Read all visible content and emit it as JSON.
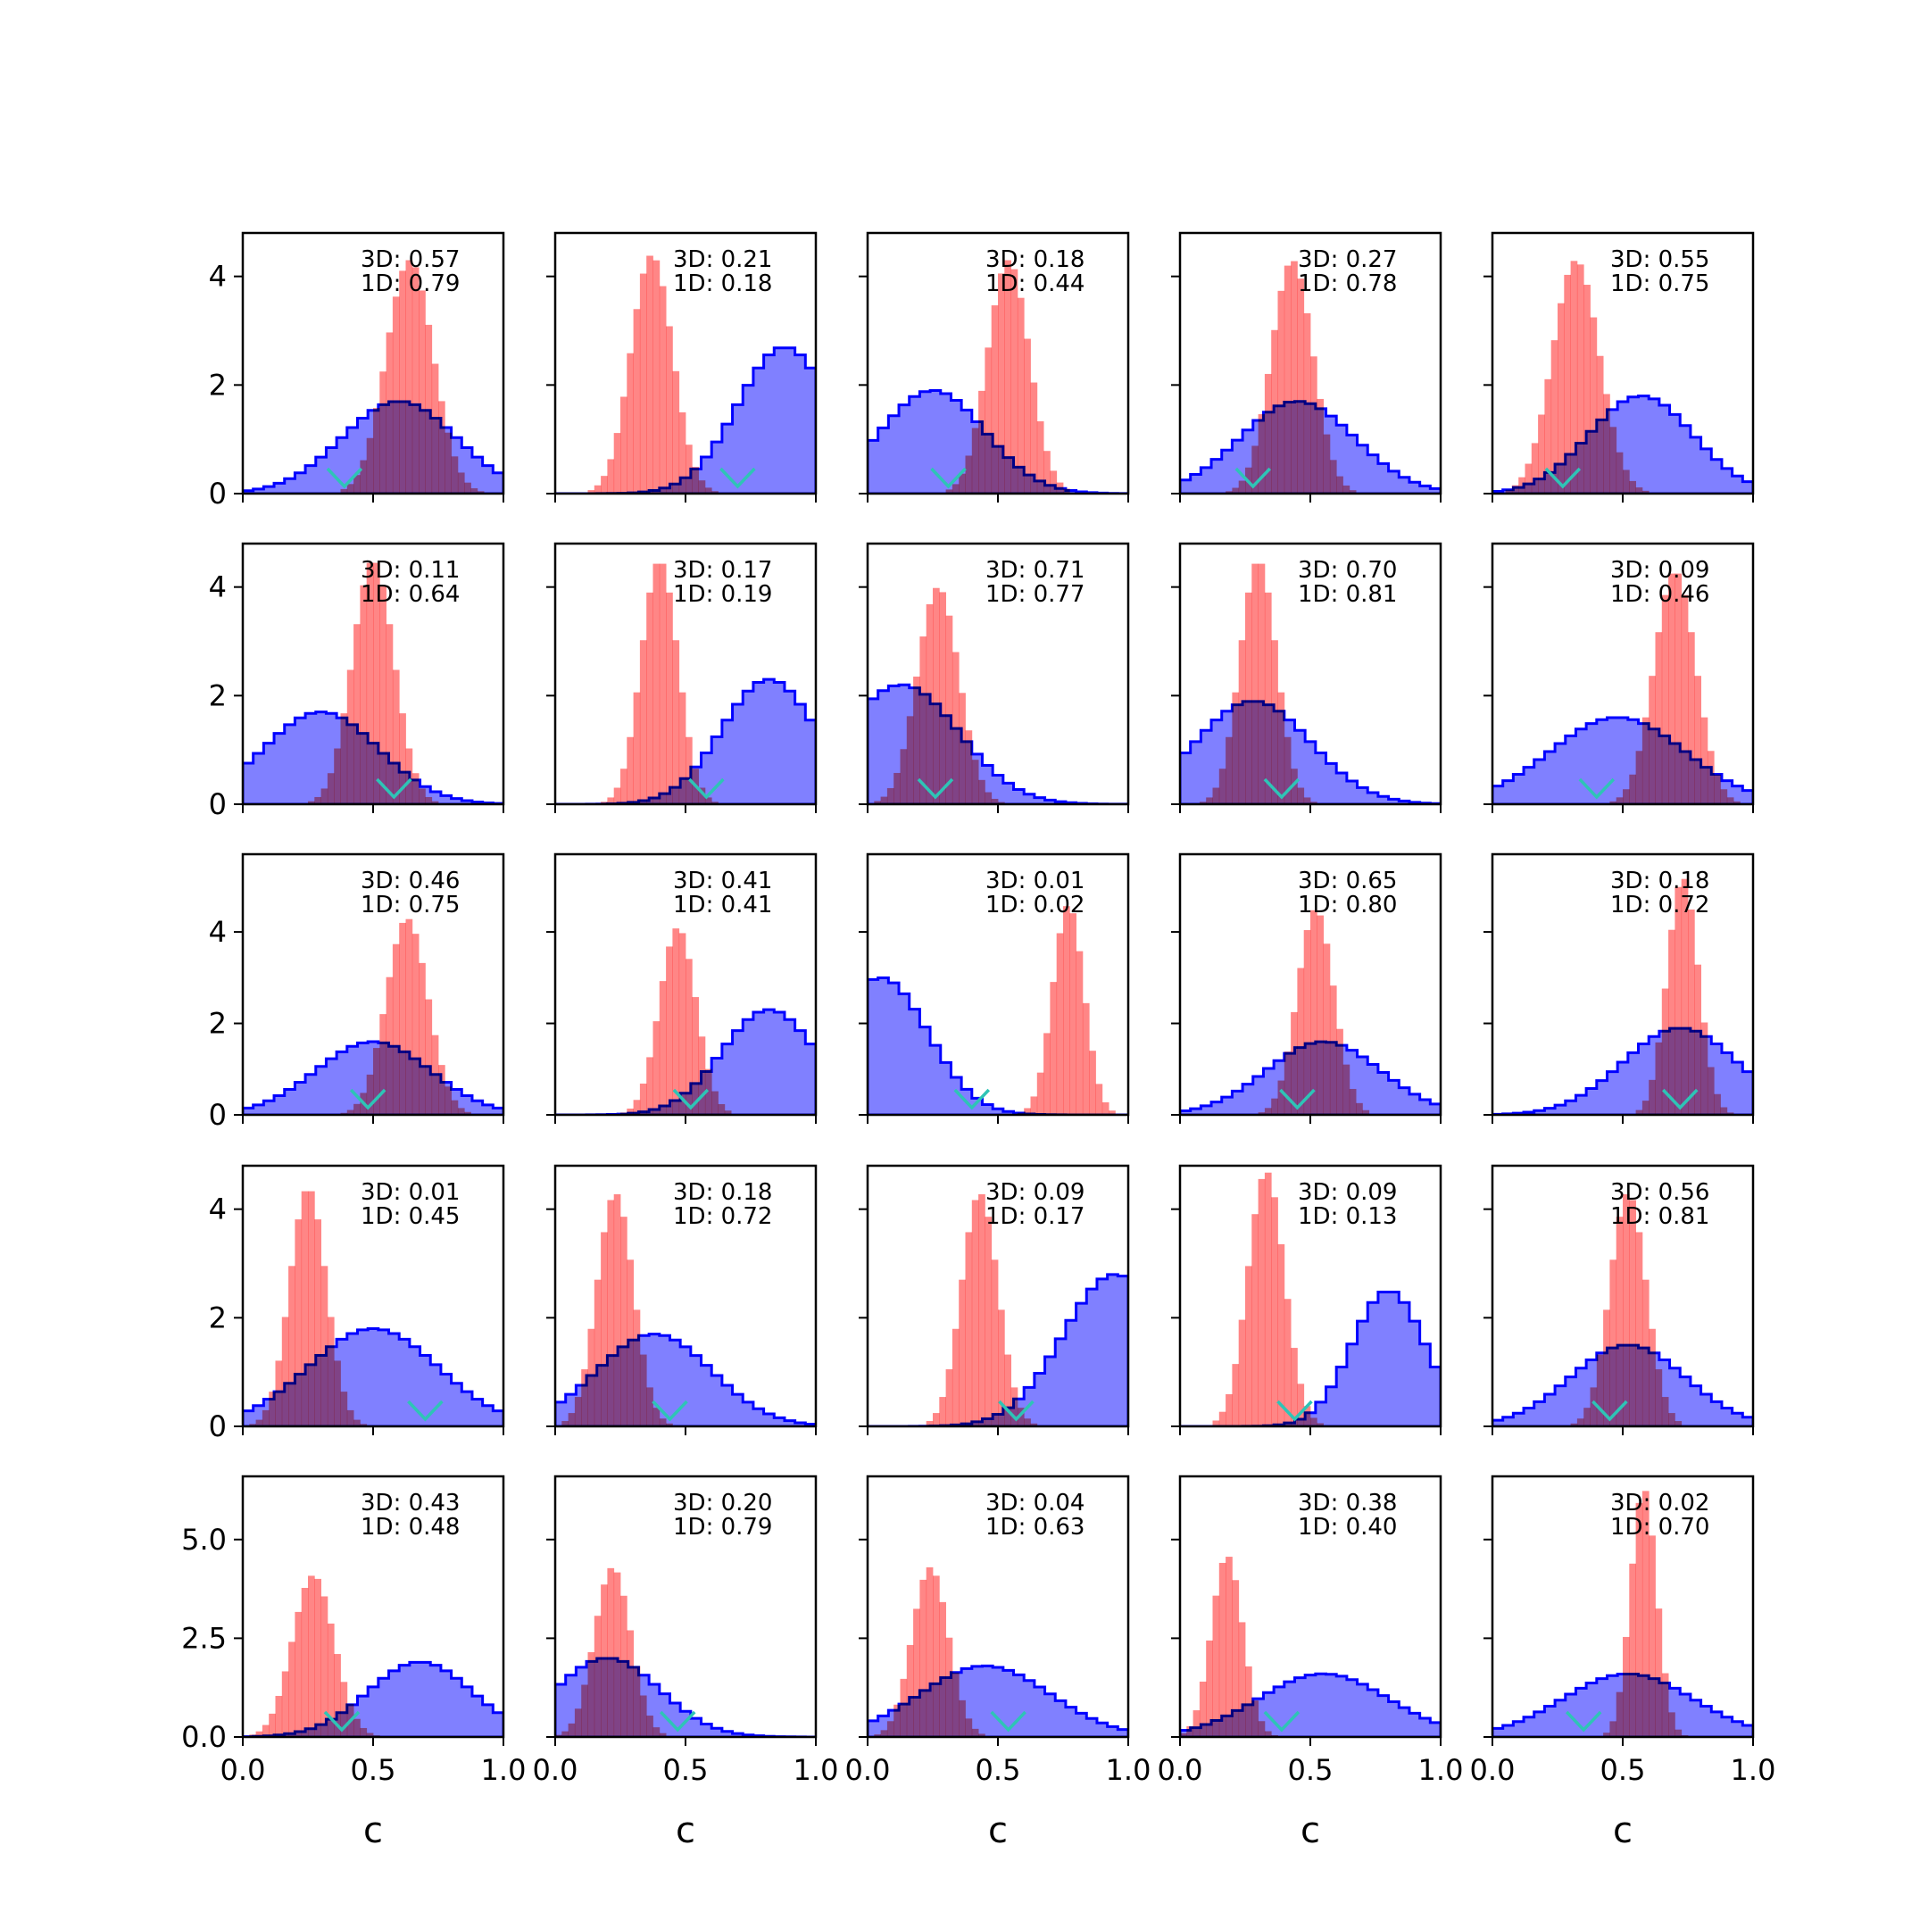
{
  "colors": {
    "blue_fill": "#8080ff",
    "blue_edge": "#0000ff",
    "red_fill": "#ff8080",
    "marker": "#2ec4b6",
    "axes": "#000000"
  },
  "chart_data": {
    "type": "grid",
    "layout": {
      "rows": 5,
      "cols": 5,
      "sharex": true,
      "sharey": "row"
    },
    "xlabel": "c",
    "xlim": [
      0,
      1
    ],
    "xticks": [
      0.0,
      0.5,
      1.0
    ],
    "xtick_labels": [
      "0.0",
      "0.5",
      "1.0"
    ],
    "row_ylims": [
      [
        0,
        4.8
      ],
      [
        0,
        4.8
      ],
      [
        0,
        5.7
      ],
      [
        0,
        4.8
      ],
      [
        0,
        6.6
      ]
    ],
    "row_yticks": [
      [
        0,
        2,
        4
      ],
      [
        0,
        2,
        4
      ],
      [
        0,
        2,
        4
      ],
      [
        0,
        2,
        4
      ],
      [
        0.0,
        2.5,
        5.0
      ]
    ],
    "row_ytick_labels": [
      [
        "0",
        "2",
        "4"
      ],
      [
        "0",
        "2",
        "4"
      ],
      [
        "0",
        "2",
        "4"
      ],
      [
        "0",
        "2",
        "4"
      ],
      [
        "0.0",
        "2.5",
        "5.0"
      ]
    ],
    "series_styles": {
      "blue": "step histogram, filled blue (alpha 0.5) with solid blue outline",
      "red": "bar histogram, filled red (alpha 0.5)",
      "marker": "cyan 'v' marker at true c value"
    },
    "panels": [
      {
        "row": 0,
        "col": 0,
        "ann": [
          "3D: 0.57",
          "1D: 0.79"
        ],
        "blue": {
          "mean": 0.6,
          "sd": 0.22,
          "peak": 1.7
        },
        "red": {
          "mean": 0.64,
          "sd": 0.09,
          "peak": 4.3
        },
        "marker": 0.39
      },
      {
        "row": 0,
        "col": 1,
        "ann": [
          "3D: 0.21",
          "1D: 0.18"
        ],
        "blue": {
          "mean": 0.88,
          "sd": 0.18,
          "peak": 2.7
        },
        "red": {
          "mean": 0.37,
          "sd": 0.08,
          "peak": 4.4
        },
        "marker": 0.7
      },
      {
        "row": 0,
        "col": 2,
        "ann": [
          "3D: 0.18",
          "1D: 0.44"
        ],
        "blue": {
          "mean": 0.25,
          "sd": 0.2,
          "peak": 1.9
        },
        "red": {
          "mean": 0.54,
          "sd": 0.08,
          "peak": 4.3
        },
        "marker": 0.31
      },
      {
        "row": 0,
        "col": 3,
        "ann": [
          "3D: 0.27",
          "1D: 0.78"
        ],
        "blue": {
          "mean": 0.45,
          "sd": 0.22,
          "peak": 1.7
        },
        "red": {
          "mean": 0.43,
          "sd": 0.08,
          "peak": 4.3
        },
        "marker": 0.28
      },
      {
        "row": 0,
        "col": 4,
        "ann": [
          "3D: 0.55",
          "1D: 0.75"
        ],
        "blue": {
          "mean": 0.57,
          "sd": 0.2,
          "peak": 1.8
        },
        "red": {
          "mean": 0.32,
          "sd": 0.09,
          "peak": 4.3
        },
        "marker": 0.27
      },
      {
        "row": 1,
        "col": 0,
        "ann": [
          "3D: 0.11",
          "1D: 0.64"
        ],
        "blue": {
          "mean": 0.3,
          "sd": 0.22,
          "peak": 1.7
        },
        "red": {
          "mean": 0.5,
          "sd": 0.08,
          "peak": 4.5
        },
        "marker": 0.58
      },
      {
        "row": 1,
        "col": 1,
        "ann": [
          "3D: 0.17",
          "1D: 0.19"
        ],
        "blue": {
          "mean": 0.82,
          "sd": 0.18,
          "peak": 2.3
        },
        "red": {
          "mean": 0.4,
          "sd": 0.07,
          "peak": 4.5
        },
        "marker": 0.58
      },
      {
        "row": 1,
        "col": 2,
        "ann": [
          "3D: 0.71",
          "1D: 0.77"
        ],
        "blue": {
          "mean": 0.13,
          "sd": 0.22,
          "peak": 2.2
        },
        "red": {
          "mean": 0.27,
          "sd": 0.08,
          "peak": 4.0
        },
        "marker": 0.26
      },
      {
        "row": 1,
        "col": 3,
        "ann": [
          "3D: 0.70",
          "1D: 0.81"
        ],
        "blue": {
          "mean": 0.28,
          "sd": 0.22,
          "peak": 1.9
        },
        "red": {
          "mean": 0.3,
          "sd": 0.07,
          "peak": 4.5
        },
        "marker": 0.39
      },
      {
        "row": 1,
        "col": 4,
        "ann": [
          "3D: 0.09",
          "1D: 0.46"
        ],
        "blue": {
          "mean": 0.48,
          "sd": 0.26,
          "peak": 1.6
        },
        "red": {
          "mean": 0.7,
          "sd": 0.08,
          "peak": 4.3
        },
        "marker": 0.4
      },
      {
        "row": 2,
        "col": 0,
        "ann": [
          "3D: 0.46",
          "1D: 0.75"
        ],
        "blue": {
          "mean": 0.5,
          "sd": 0.22,
          "peak": 1.6
        },
        "red": {
          "mean": 0.63,
          "sd": 0.08,
          "peak": 4.3
        },
        "marker": 0.48
      },
      {
        "row": 2,
        "col": 1,
        "ann": [
          "3D: 0.41",
          "1D: 0.41"
        ],
        "blue": {
          "mean": 0.82,
          "sd": 0.18,
          "peak": 2.3
        },
        "red": {
          "mean": 0.47,
          "sd": 0.07,
          "peak": 4.1
        },
        "marker": 0.52
      },
      {
        "row": 2,
        "col": 2,
        "ann": [
          "3D: 0.01",
          "1D: 0.02"
        ],
        "blue": {
          "mean": 0.05,
          "sd": 0.18,
          "peak": 3.0
        },
        "red": {
          "mean": 0.77,
          "sd": 0.06,
          "peak": 4.6
        },
        "marker": 0.4
      },
      {
        "row": 2,
        "col": 3,
        "ann": [
          "3D: 0.65",
          "1D: 0.80"
        ],
        "blue": {
          "mean": 0.55,
          "sd": 0.22,
          "peak": 1.6
        },
        "red": {
          "mean": 0.52,
          "sd": 0.07,
          "peak": 4.5
        },
        "marker": 0.45
      },
      {
        "row": 2,
        "col": 4,
        "ann": [
          "3D: 0.18",
          "1D: 0.72"
        ],
        "blue": {
          "mean": 0.72,
          "sd": 0.22,
          "peak": 1.9
        },
        "red": {
          "mean": 0.73,
          "sd": 0.06,
          "peak": 5.2
        },
        "marker": 0.72
      },
      {
        "row": 3,
        "col": 0,
        "ann": [
          "3D: 0.01",
          "1D: 0.45"
        ],
        "blue": {
          "mean": 0.5,
          "sd": 0.25,
          "peak": 1.8
        },
        "red": {
          "mean": 0.25,
          "sd": 0.07,
          "peak": 4.4
        },
        "marker": 0.7
      },
      {
        "row": 3,
        "col": 1,
        "ann": [
          "3D: 0.18",
          "1D: 0.72"
        ],
        "blue": {
          "mean": 0.38,
          "sd": 0.22,
          "peak": 1.7
        },
        "red": {
          "mean": 0.23,
          "sd": 0.07,
          "peak": 4.3
        },
        "marker": 0.44
      },
      {
        "row": 3,
        "col": 2,
        "ann": [
          "3D: 0.09",
          "1D: 0.17"
        ],
        "blue": {
          "mean": 0.95,
          "sd": 0.2,
          "peak": 2.8
        },
        "red": {
          "mean": 0.43,
          "sd": 0.07,
          "peak": 4.3
        },
        "marker": 0.57
      },
      {
        "row": 3,
        "col": 3,
        "ann": [
          "3D: 0.09",
          "1D: 0.13"
        ],
        "blue": {
          "mean": 0.8,
          "sd": 0.14,
          "peak": 2.5
        },
        "red": {
          "mean": 0.33,
          "sd": 0.07,
          "peak": 4.7
        },
        "marker": 0.44
      },
      {
        "row": 3,
        "col": 4,
        "ann": [
          "3D: 0.56",
          "1D: 0.81"
        ],
        "blue": {
          "mean": 0.52,
          "sd": 0.22,
          "peak": 1.5
        },
        "red": {
          "mean": 0.52,
          "sd": 0.07,
          "peak": 4.3
        },
        "marker": 0.45
      },
      {
        "row": 4,
        "col": 0,
        "ann": [
          "3D: 0.43",
          "1D: 0.48"
        ],
        "blue": {
          "mean": 0.68,
          "sd": 0.2,
          "peak": 1.9
        },
        "red": {
          "mean": 0.27,
          "sd": 0.08,
          "peak": 4.1
        },
        "marker": 0.38
      },
      {
        "row": 4,
        "col": 1,
        "ann": [
          "3D: 0.20",
          "1D: 0.79"
        ],
        "blue": {
          "mean": 0.2,
          "sd": 0.2,
          "peak": 2.0
        },
        "red": {
          "mean": 0.22,
          "sd": 0.07,
          "peak": 4.3
        },
        "marker": 0.47
      },
      {
        "row": 4,
        "col": 2,
        "ann": [
          "3D: 0.04",
          "1D: 0.63"
        ],
        "blue": {
          "mean": 0.45,
          "sd": 0.25,
          "peak": 1.8
        },
        "red": {
          "mean": 0.24,
          "sd": 0.07,
          "peak": 4.3
        },
        "marker": 0.54
      },
      {
        "row": 4,
        "col": 3,
        "ann": [
          "3D: 0.38",
          "1D: 0.40"
        ],
        "blue": {
          "mean": 0.55,
          "sd": 0.25,
          "peak": 1.6
        },
        "red": {
          "mean": 0.18,
          "sd": 0.06,
          "peak": 4.6
        },
        "marker": 0.39
      },
      {
        "row": 4,
        "col": 4,
        "ann": [
          "3D: 0.02",
          "1D: 0.70"
        ],
        "blue": {
          "mean": 0.52,
          "sd": 0.25,
          "peak": 1.6
        },
        "red": {
          "mean": 0.58,
          "sd": 0.05,
          "peak": 6.3
        },
        "marker": 0.35
      }
    ]
  }
}
